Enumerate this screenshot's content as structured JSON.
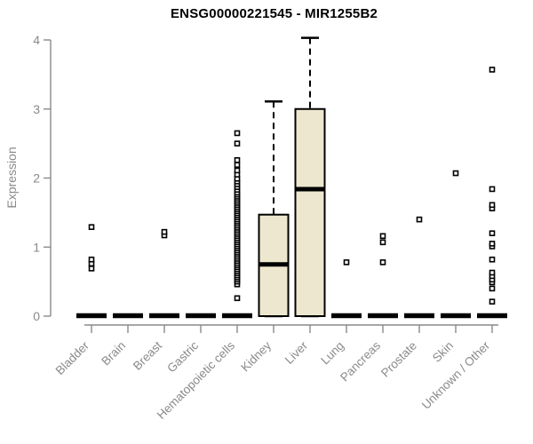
{
  "chart_data": {
    "type": "boxplot",
    "title": "ENSG00000221545 - MIR1255B2",
    "ylabel": "Expression",
    "ylim": [
      0,
      4
    ],
    "yticks": [
      0,
      1,
      2,
      3,
      4
    ],
    "grid": false,
    "categories": [
      "Bladder",
      "Brain",
      "Breast",
      "Gastric",
      "Hematopoietic cells",
      "Kidney",
      "Liver",
      "Lung",
      "Pancreas",
      "Prostate",
      "Skin",
      "Unknown / Other"
    ],
    "series": [
      {
        "name": "Bladder",
        "q1": 0,
        "median": 0,
        "q3": 0,
        "whisker_low": 0,
        "whisker_high": 0,
        "outliers": [
          0.69,
          0.76,
          0.82,
          1.29
        ]
      },
      {
        "name": "Brain",
        "q1": 0,
        "median": 0,
        "q3": 0,
        "whisker_low": 0,
        "whisker_high": 0,
        "outliers": []
      },
      {
        "name": "Breast",
        "q1": 0,
        "median": 0,
        "q3": 0,
        "whisker_low": 0,
        "whisker_high": 0,
        "outliers": [
          1.17,
          1.22
        ]
      },
      {
        "name": "Gastric",
        "q1": 0,
        "median": 0,
        "q3": 0,
        "whisker_low": 0,
        "whisker_high": 0,
        "outliers": []
      },
      {
        "name": "Hematopoietic cells",
        "q1": 0,
        "median": 0,
        "q3": 0,
        "whisker_low": 0,
        "whisker_high": 0,
        "outliers": [
          0.26,
          0.46,
          0.5,
          0.53,
          0.56,
          0.59,
          0.62,
          0.65,
          0.68,
          0.71,
          0.74,
          0.77,
          0.8,
          0.83,
          0.86,
          0.89,
          0.92,
          0.95,
          0.98,
          1.01,
          1.04,
          1.07,
          1.1,
          1.13,
          1.16,
          1.19,
          1.22,
          1.25,
          1.28,
          1.31,
          1.34,
          1.37,
          1.4,
          1.43,
          1.46,
          1.49,
          1.52,
          1.55,
          1.58,
          1.61,
          1.64,
          1.67,
          1.7,
          1.73,
          1.76,
          1.79,
          1.83,
          1.87,
          1.91,
          1.95,
          1.99,
          2.05,
          2.11,
          2.19,
          2.26,
          2.5,
          2.65
        ]
      },
      {
        "name": "Kidney",
        "q1": 0,
        "median": 0.75,
        "q3": 1.47,
        "whisker_low": 0,
        "whisker_high": 3.11,
        "outliers": []
      },
      {
        "name": "Liver",
        "q1": 0,
        "median": 1.84,
        "q3": 3.0,
        "whisker_low": 0,
        "whisker_high": 4.03,
        "outliers": []
      },
      {
        "name": "Lung",
        "q1": 0,
        "median": 0,
        "q3": 0,
        "whisker_low": 0,
        "whisker_high": 0,
        "outliers": [
          0.78
        ]
      },
      {
        "name": "Pancreas",
        "q1": 0,
        "median": 0,
        "q3": 0,
        "whisker_low": 0,
        "whisker_high": 0,
        "outliers": [
          0.78,
          1.07,
          1.16
        ]
      },
      {
        "name": "Prostate",
        "q1": 0,
        "median": 0,
        "q3": 0,
        "whisker_low": 0,
        "whisker_high": 0,
        "outliers": [
          1.4
        ]
      },
      {
        "name": "Skin",
        "q1": 0,
        "median": 0,
        "q3": 0,
        "whisker_low": 0,
        "whisker_high": 0,
        "outliers": [
          2.07
        ]
      },
      {
        "name": "Unknown / Other",
        "q1": 0,
        "median": 0,
        "q3": 0,
        "whisker_low": 0,
        "whisker_high": 0,
        "outliers": [
          0.21,
          0.4,
          0.49,
          0.53,
          0.58,
          0.63,
          0.82,
          1.01,
          1.05,
          1.2,
          1.56,
          1.61,
          1.84,
          3.57
        ]
      }
    ],
    "colors": {
      "box_fill": "#EDE7CF",
      "box_stroke": "#000000",
      "median_color": "#000000",
      "outlier_stroke": "#000000",
      "outlier_fill": "#ffffff",
      "axis_color": "#8a8a8a",
      "tick_text_color": "#8a8a8a",
      "title_color": "#000000"
    },
    "legend": "none"
  }
}
